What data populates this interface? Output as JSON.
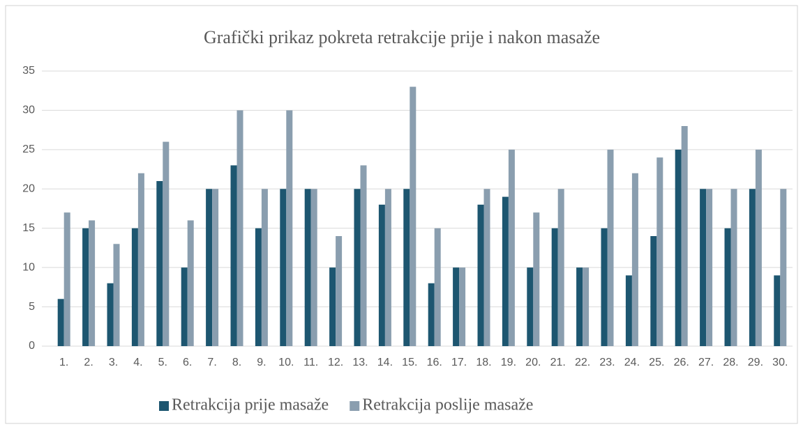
{
  "chart_data": {
    "type": "bar",
    "title": "Grafički prikaz pokreta retrakcije prije i nakon masaže",
    "categories": [
      "1.",
      "2.",
      "3.",
      "4.",
      "5.",
      "6.",
      "7.",
      "8.",
      "9.",
      "10.",
      "11.",
      "12.",
      "13.",
      "14.",
      "15.",
      "16.",
      "17.",
      "18.",
      "19.",
      "20.",
      "21.",
      "22.",
      "23.",
      "24.",
      "25.",
      "26.",
      "27.",
      "28.",
      "29.",
      "30."
    ],
    "series": [
      {
        "name": "Retrakcija prije masaže",
        "color": "#1d5670",
        "values": [
          6,
          15,
          8,
          15,
          21,
          10,
          20,
          23,
          15,
          20,
          20,
          10,
          20,
          18,
          20,
          8,
          10,
          18,
          19,
          10,
          15,
          10,
          15,
          9,
          14,
          25,
          20,
          15,
          20,
          9
        ]
      },
      {
        "name": "Retrakcija poslije masaže",
        "color": "#8a9eaf",
        "values": [
          17,
          16,
          13,
          22,
          26,
          16,
          20,
          30,
          20,
          30,
          20,
          14,
          23,
          20,
          33,
          15,
          10,
          20,
          25,
          17,
          20,
          10,
          25,
          22,
          24,
          28,
          20,
          20,
          25,
          20
        ]
      }
    ],
    "ylim": [
      0,
      35
    ],
    "yticks": [
      0,
      5,
      10,
      15,
      20,
      25,
      30,
      35
    ],
    "grid": true,
    "legend": "bottom"
  }
}
